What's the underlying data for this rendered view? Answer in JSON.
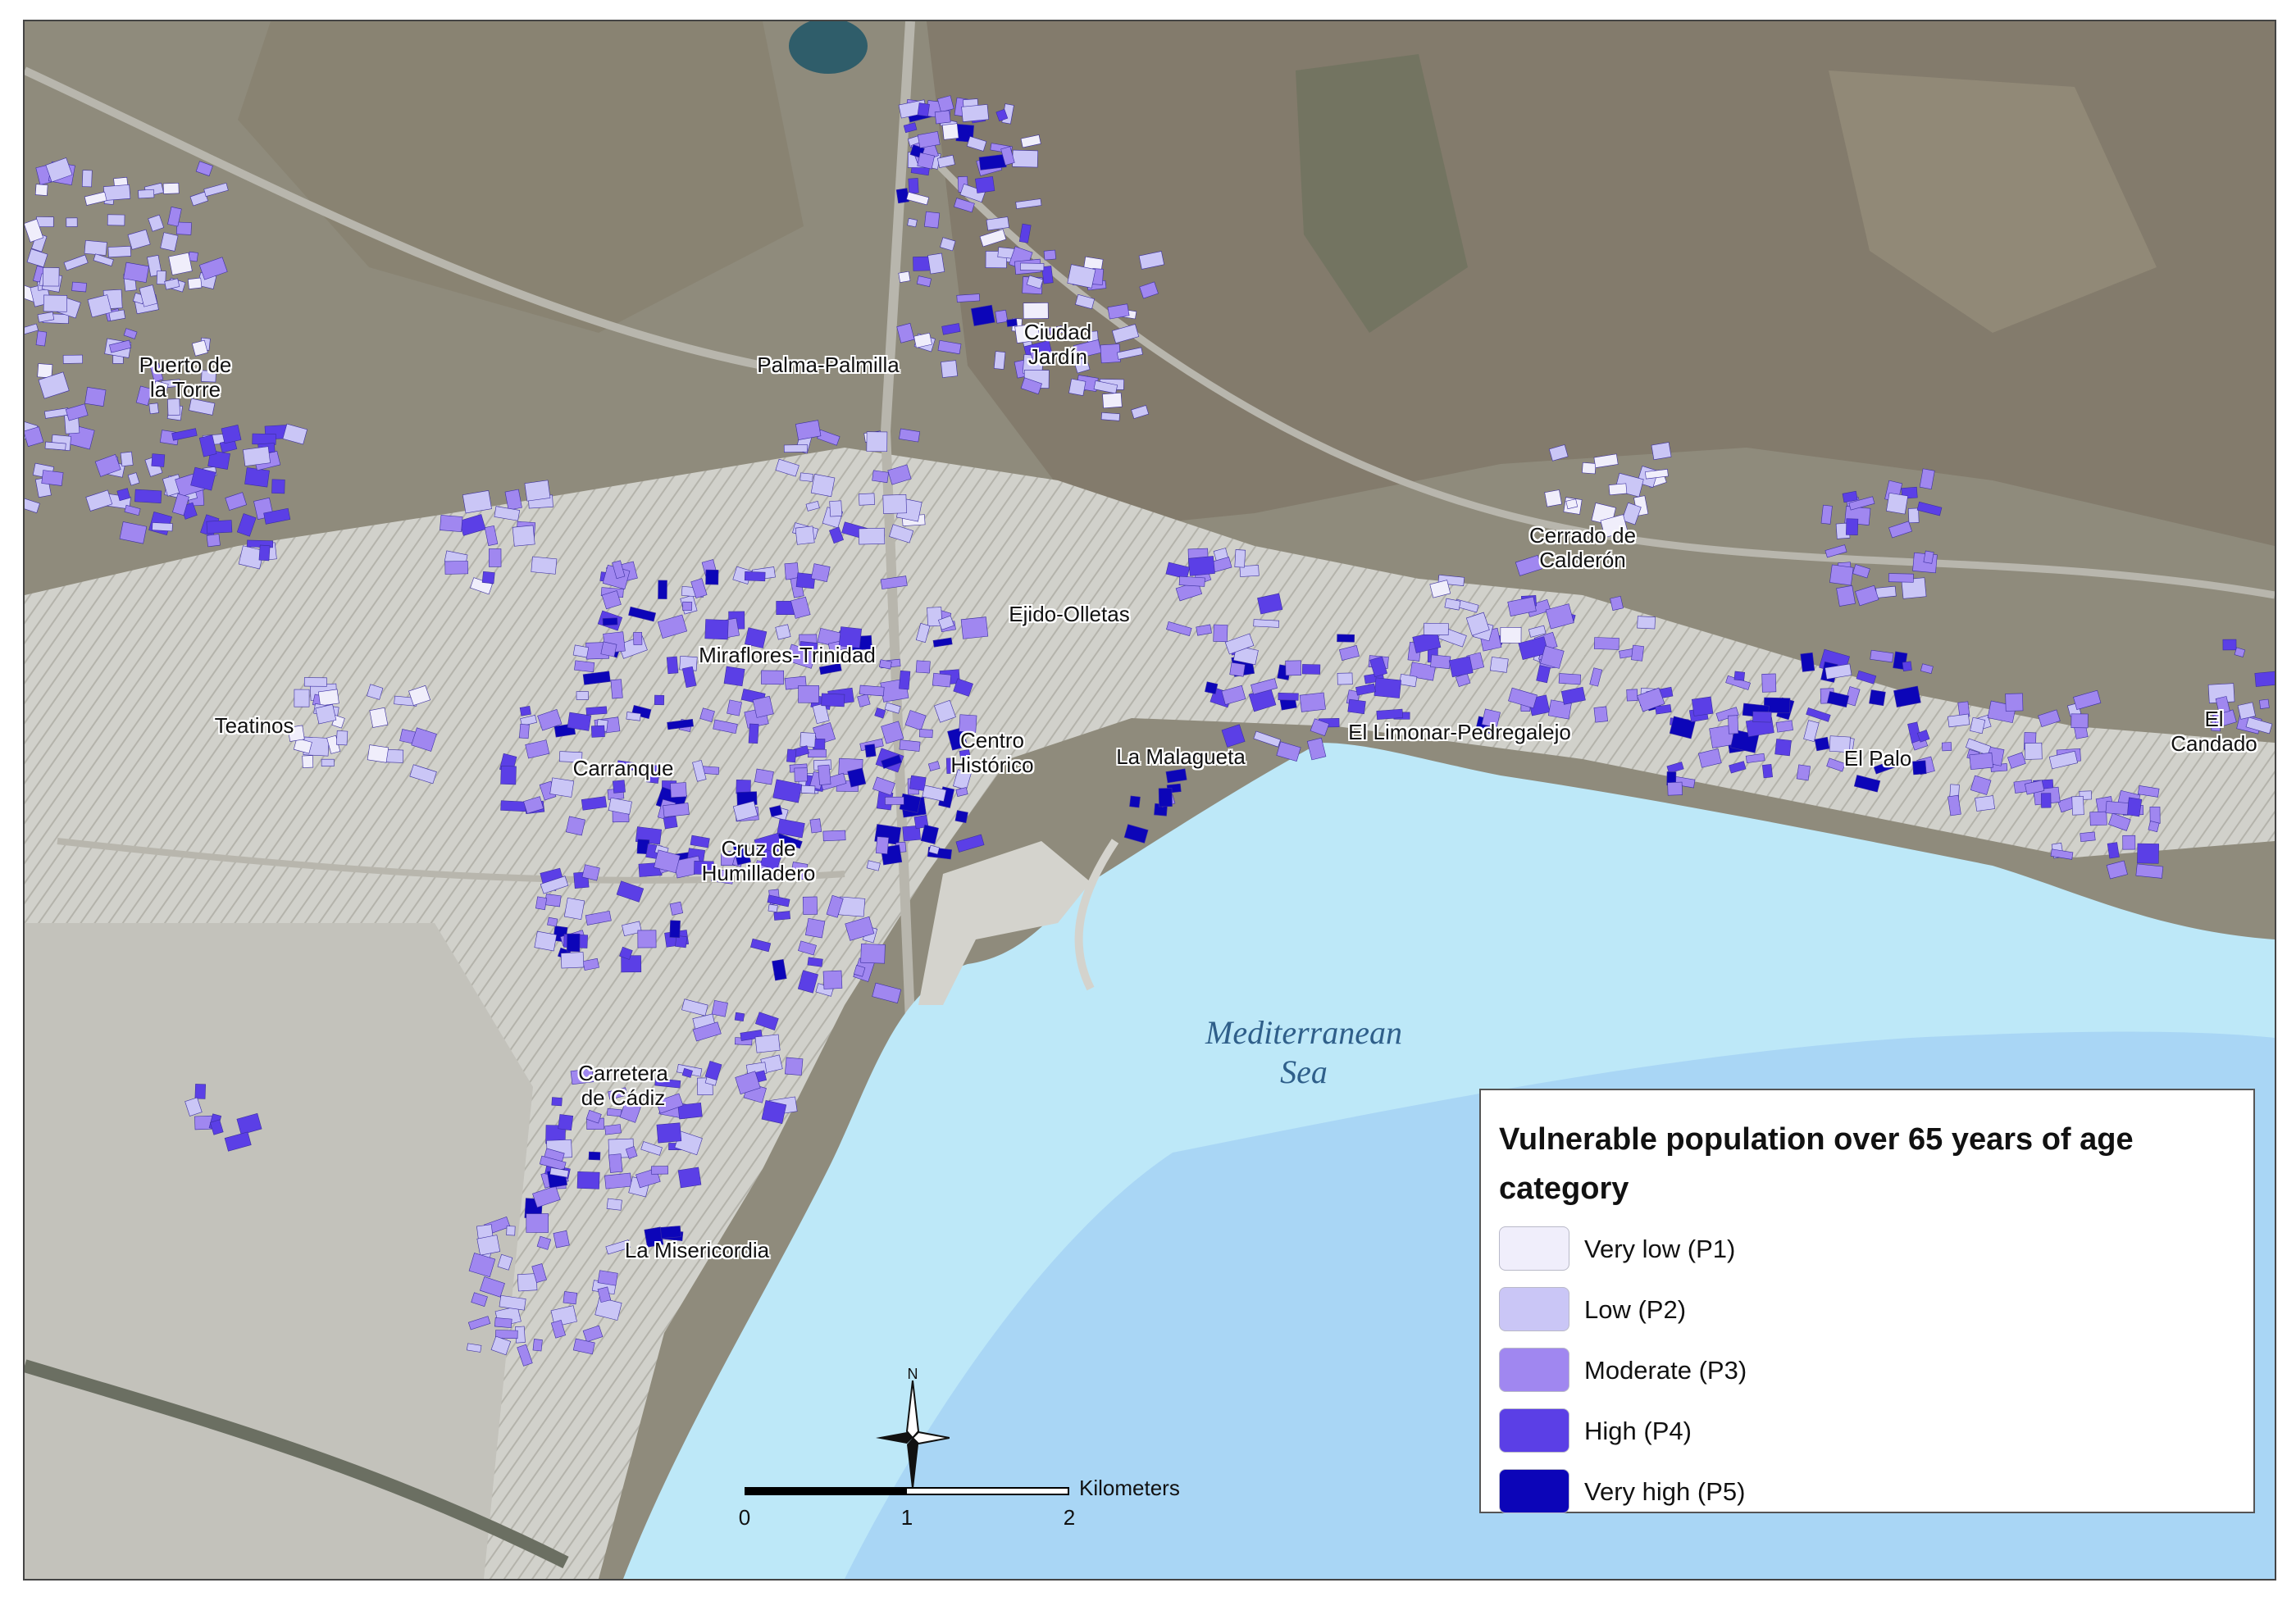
{
  "map": {
    "sea_label": "Mediterranean\nSea",
    "place_labels": [
      {
        "id": "puerto-de-la-torre",
        "text": "Puerto de\nla Torre"
      },
      {
        "id": "palma-palmilla",
        "text": "Palma-Palmilla"
      },
      {
        "id": "ciudad-jardin",
        "text": "Ciudad\nJardín"
      },
      {
        "id": "cerrado-de-calderon",
        "text": "Cerrado de\nCalderón"
      },
      {
        "id": "ejido-olletas",
        "text": "Ejido-Olletas"
      },
      {
        "id": "miraflores-trinidad",
        "text": "Miraflores-Trinidad"
      },
      {
        "id": "teatinos",
        "text": "Teatinos"
      },
      {
        "id": "carranque",
        "text": "Carranque"
      },
      {
        "id": "centro-historico",
        "text": "Centro\nHistórico"
      },
      {
        "id": "la-malagueta",
        "text": "La Malagueta"
      },
      {
        "id": "el-limonar-pedregalejo",
        "text": "El Limonar-Pedregalejo"
      },
      {
        "id": "el-palo",
        "text": "El Palo"
      },
      {
        "id": "el-candado",
        "text": "El\nCandado"
      },
      {
        "id": "cruz-de-humilladero",
        "text": "Cruz de\nHumilladero"
      },
      {
        "id": "carretera-de-cadiz",
        "text": "Carretera\nde Cádiz"
      },
      {
        "id": "la-misericordia",
        "text": "La Misericordia"
      }
    ]
  },
  "legend": {
    "title": "Vulnerable population over 65 years of age category",
    "items": [
      {
        "label": "Very low (P1)",
        "color": "#f0eefb"
      },
      {
        "label": "Low (P2)",
        "color": "#cac6f6"
      },
      {
        "label": "Moderate (P3)",
        "color": "#a087f0"
      },
      {
        "label": "High (P4)",
        "color": "#5b3fe6"
      },
      {
        "label": "Very high (P5)",
        "color": "#0c05b8"
      }
    ]
  },
  "scale_bar": {
    "unit": "Kilometers",
    "ticks": [
      "0",
      "1",
      "2"
    ]
  },
  "north_arrow": {
    "letter": "N"
  },
  "colors": {
    "terrain": "#8f8b7c",
    "sea": "#bde8f8",
    "sea_deep": "#a9d6f5",
    "urban": "#c9c9c4"
  }
}
